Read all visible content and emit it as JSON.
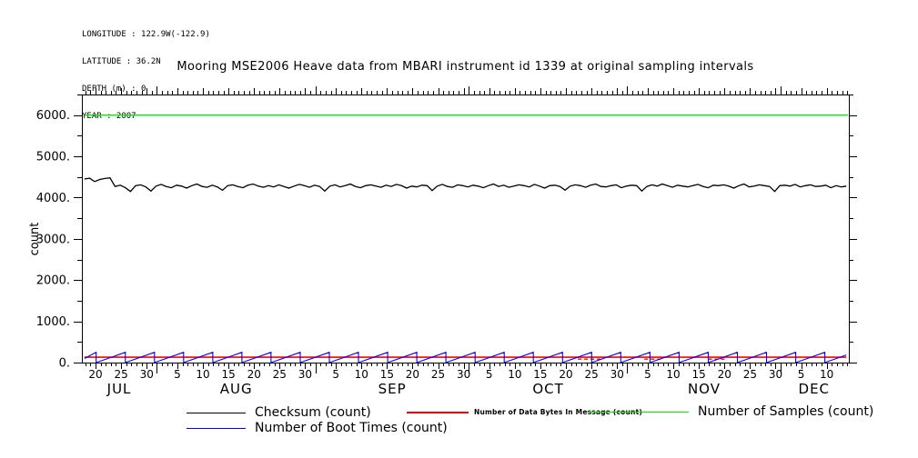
{
  "meta": {
    "longitude": "LONGITUDE : 122.9W(-122.9)",
    "latitude": "LATITUDE : 36.2N",
    "depth": "DEPTH (m) : 0",
    "year": "YEAR : 2007"
  },
  "title": "Mooring MSE2006 Heave data from MBARI instrument id 1339 at original sampling intervals",
  "legend": {
    "items": [
      {
        "id": "checksum",
        "label": "Checksum (count)",
        "color": "#000000"
      },
      {
        "id": "data-bytes",
        "label": "Number of Data Bytes In Message (count)",
        "color": "#ff0000"
      },
      {
        "id": "samples",
        "label": "Number of Samples (count)",
        "color": "#00ee00"
      },
      {
        "id": "boot-times",
        "label": "Number of Boot Times (count)",
        "color": "#0000ff"
      }
    ]
  },
  "chart_data": {
    "type": "line",
    "title": "Mooring MSE2006 Heave data from MBARI instrument id 1339 at original sampling intervals",
    "xlabel": "",
    "ylabel": "count",
    "x_unit": "days across plot window, mid-July 2007 through mid-December 2007",
    "grid": false,
    "legend_position": "below",
    "y_axis": {
      "min": 0,
      "max": 6500,
      "major_tick_step": 1000,
      "minor_tick_step": 500,
      "major_ticks": [
        {
          "value": 0,
          "label": "0."
        },
        {
          "value": 1000,
          "label": "1000."
        },
        {
          "value": 2000,
          "label": "2000."
        },
        {
          "value": 3000,
          "label": "3000."
        },
        {
          "value": 4000,
          "label": "4000."
        },
        {
          "value": 5000,
          "label": "5000."
        },
        {
          "value": 6000,
          "label": "6000."
        }
      ]
    },
    "x_axis": {
      "total_days": 150,
      "minor_tick_step_days": 1,
      "first_minor_tick_day": 0.67,
      "labeled_day_ticks": [
        {
          "day": 2.67,
          "label": "20"
        },
        {
          "day": 7.67,
          "label": "25"
        },
        {
          "day": 12.67,
          "label": "30"
        },
        {
          "day": 18.67,
          "label": "5"
        },
        {
          "day": 23.67,
          "label": "10"
        },
        {
          "day": 28.67,
          "label": "15"
        },
        {
          "day": 33.67,
          "label": "20"
        },
        {
          "day": 38.67,
          "label": "25"
        },
        {
          "day": 43.67,
          "label": "30"
        },
        {
          "day": 49.67,
          "label": "5"
        },
        {
          "day": 54.67,
          "label": "10"
        },
        {
          "day": 59.67,
          "label": "15"
        },
        {
          "day": 64.67,
          "label": "20"
        },
        {
          "day": 69.67,
          "label": "25"
        },
        {
          "day": 74.67,
          "label": "30"
        },
        {
          "day": 79.67,
          "label": "5"
        },
        {
          "day": 84.67,
          "label": "10"
        },
        {
          "day": 89.67,
          "label": "15"
        },
        {
          "day": 94.67,
          "label": "20"
        },
        {
          "day": 99.67,
          "label": "25"
        },
        {
          "day": 104.67,
          "label": "30"
        },
        {
          "day": 110.67,
          "label": "5"
        },
        {
          "day": 115.67,
          "label": "10"
        },
        {
          "day": 120.67,
          "label": "15"
        },
        {
          "day": 125.67,
          "label": "20"
        },
        {
          "day": 130.67,
          "label": "25"
        },
        {
          "day": 135.67,
          "label": "30"
        },
        {
          "day": 140.67,
          "label": "5"
        },
        {
          "day": 145.67,
          "label": "10"
        }
      ],
      "month_start_ticks": [
        14.67,
        45.67,
        75.67,
        106.67,
        136.67
      ],
      "month_labels": [
        {
          "day": 7.3,
          "label": "JUL"
        },
        {
          "day": 30.2,
          "label": "AUG"
        },
        {
          "day": 60.7,
          "label": "SEP"
        },
        {
          "day": 91.2,
          "label": "OCT"
        },
        {
          "day": 121.7,
          "label": "NOV"
        },
        {
          "day": 143.2,
          "label": "DEC"
        }
      ]
    },
    "series": [
      {
        "name": "Checksum (count)",
        "color": "#000000",
        "style": "noisy-line",
        "x_start": 0.5,
        "x_step": 1,
        "values": [
          4450,
          4470,
          4390,
          4440,
          4465,
          4480,
          4270,
          4300,
          4240,
          4150,
          4290,
          4310,
          4260,
          4160,
          4280,
          4320,
          4270,
          4240,
          4300,
          4280,
          4230,
          4290,
          4330,
          4270,
          4250,
          4300,
          4260,
          4180,
          4290,
          4310,
          4270,
          4240,
          4300,
          4330,
          4280,
          4250,
          4290,
          4260,
          4310,
          4270,
          4230,
          4280,
          4320,
          4290,
          4250,
          4300,
          4270,
          4160,
          4280,
          4310,
          4260,
          4290,
          4330,
          4270,
          4240,
          4290,
          4310,
          4280,
          4250,
          4300,
          4270,
          4320,
          4290,
          4230,
          4280,
          4260,
          4300,
          4290,
          4170,
          4280,
          4320,
          4270,
          4250,
          4310,
          4290,
          4260,
          4300,
          4280,
          4240,
          4290,
          4330,
          4270,
          4300,
          4250,
          4280,
          4310,
          4290,
          4260,
          4320,
          4280,
          4230,
          4290,
          4300,
          4270,
          4180,
          4280,
          4310,
          4290,
          4250,
          4300,
          4330,
          4270,
          4260,
          4290,
          4310,
          4240,
          4280,
          4300,
          4290,
          4160,
          4270,
          4310,
          4280,
          4330,
          4290,
          4250,
          4300,
          4280,
          4260,
          4290,
          4320,
          4270,
          4240,
          4300,
          4290,
          4310,
          4280,
          4230,
          4290,
          4330,
          4260,
          4280,
          4310,
          4290,
          4270,
          4150,
          4290,
          4300,
          4280,
          4320,
          4260,
          4290,
          4310,
          4270,
          4280,
          4300,
          4240,
          4290,
          4260,
          4280
        ]
      },
      {
        "name": "Number of Data Bytes In Message (count)",
        "color": "#ff0000",
        "style": "constant-line",
        "points": [
          [
            0.5,
            130
          ],
          [
            149.5,
            130
          ]
        ],
        "dropout_dashes": {
          "value": 85,
          "segments": [
            [
              97,
              102
            ],
            [
              110,
              113.5
            ],
            [
              122.5,
              126
            ]
          ]
        }
      },
      {
        "name": "Number of Samples (count)",
        "color": "#00ee00",
        "style": "constant-line",
        "points": [
          [
            0.5,
            6000
          ],
          [
            149.8,
            6000
          ]
        ]
      },
      {
        "name": "Number of Boot Times (count)",
        "color": "#0000ff",
        "style": "sawtooth",
        "points": [
          [
            0.5,
            100
          ],
          [
            2.8,
            250
          ],
          [
            2.8,
            0
          ],
          [
            8.5,
            250
          ],
          [
            8.5,
            0
          ],
          [
            14.2,
            250
          ],
          [
            14.2,
            0
          ],
          [
            19.9,
            250
          ],
          [
            19.9,
            0
          ],
          [
            25.6,
            250
          ],
          [
            25.6,
            0
          ],
          [
            31.3,
            250
          ],
          [
            31.3,
            0
          ],
          [
            37.0,
            250
          ],
          [
            37.0,
            0
          ],
          [
            42.7,
            250
          ],
          [
            42.7,
            0
          ],
          [
            48.4,
            250
          ],
          [
            48.4,
            0
          ],
          [
            54.1,
            250
          ],
          [
            54.1,
            0
          ],
          [
            59.8,
            250
          ],
          [
            59.8,
            0
          ],
          [
            65.5,
            250
          ],
          [
            65.5,
            0
          ],
          [
            71.2,
            250
          ],
          [
            71.2,
            0
          ],
          [
            76.9,
            250
          ],
          [
            76.9,
            0
          ],
          [
            82.6,
            250
          ],
          [
            82.6,
            0
          ],
          [
            88.3,
            250
          ],
          [
            88.3,
            0
          ],
          [
            94.0,
            250
          ],
          [
            94.0,
            0
          ],
          [
            99.7,
            250
          ],
          [
            99.7,
            0
          ],
          [
            105.4,
            250
          ],
          [
            105.4,
            0
          ],
          [
            111.1,
            250
          ],
          [
            111.1,
            0
          ],
          [
            116.8,
            250
          ],
          [
            116.8,
            0
          ],
          [
            122.5,
            250
          ],
          [
            122.5,
            0
          ],
          [
            128.2,
            250
          ],
          [
            128.2,
            0
          ],
          [
            133.9,
            250
          ],
          [
            133.9,
            0
          ],
          [
            139.6,
            250
          ],
          [
            139.6,
            0
          ],
          [
            145.3,
            250
          ],
          [
            145.3,
            0
          ],
          [
            149.5,
            184
          ]
        ]
      }
    ]
  }
}
